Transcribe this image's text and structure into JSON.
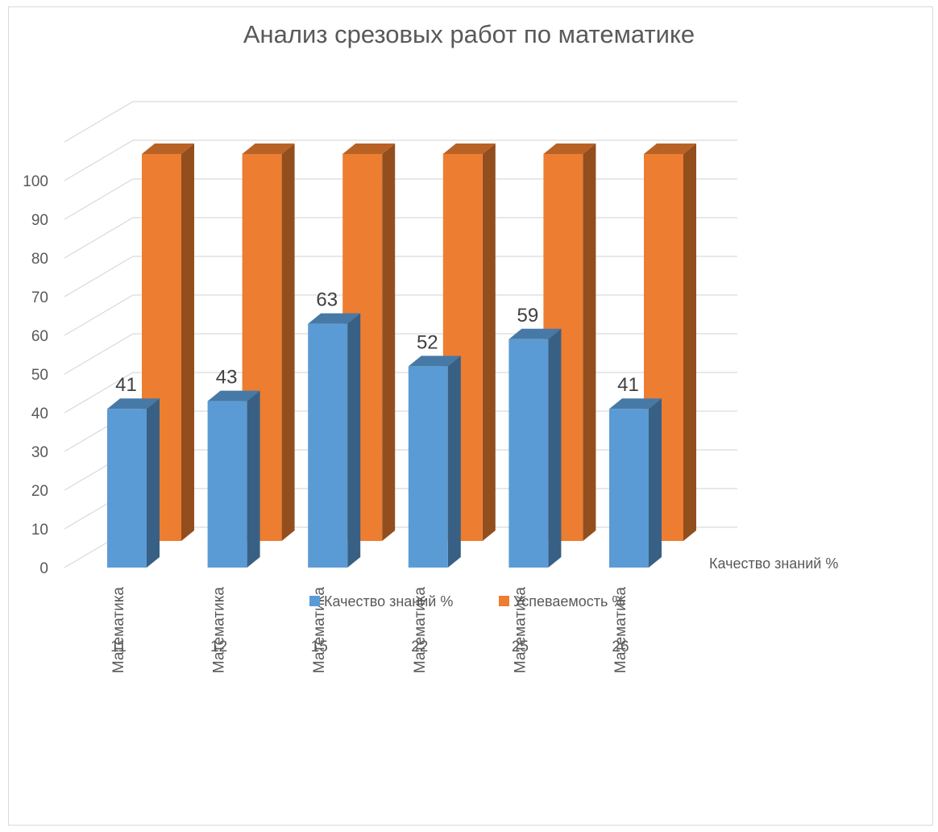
{
  "chart_data": {
    "type": "bar",
    "variant": "3d-column",
    "title": "Анализ срезовых работ по математике",
    "categories": [
      "Математика",
      "Математика",
      "Математика",
      "Математика",
      "Математика",
      "Математика"
    ],
    "category_groups": [
      "11",
      "12",
      "15",
      "22",
      "25",
      "26"
    ],
    "series": [
      {
        "name": "Качество знаний %",
        "values": [
          41,
          43,
          63,
          52,
          59,
          41
        ],
        "color": "#5b9bd5",
        "data_labels": true
      },
      {
        "name": "Успеваемость %",
        "values": [
          100,
          100,
          100,
          100,
          100,
          100
        ],
        "color": "#ed7d31",
        "data_labels": false
      }
    ],
    "depth_axis_label": "Качество знаний %",
    "y_ticks": [
      "0",
      "10",
      "20",
      "30",
      "40",
      "50",
      "60",
      "70",
      "80",
      "90",
      "100"
    ],
    "ylim": [
      0,
      100
    ],
    "grid": true,
    "legend_position": "bottom"
  }
}
